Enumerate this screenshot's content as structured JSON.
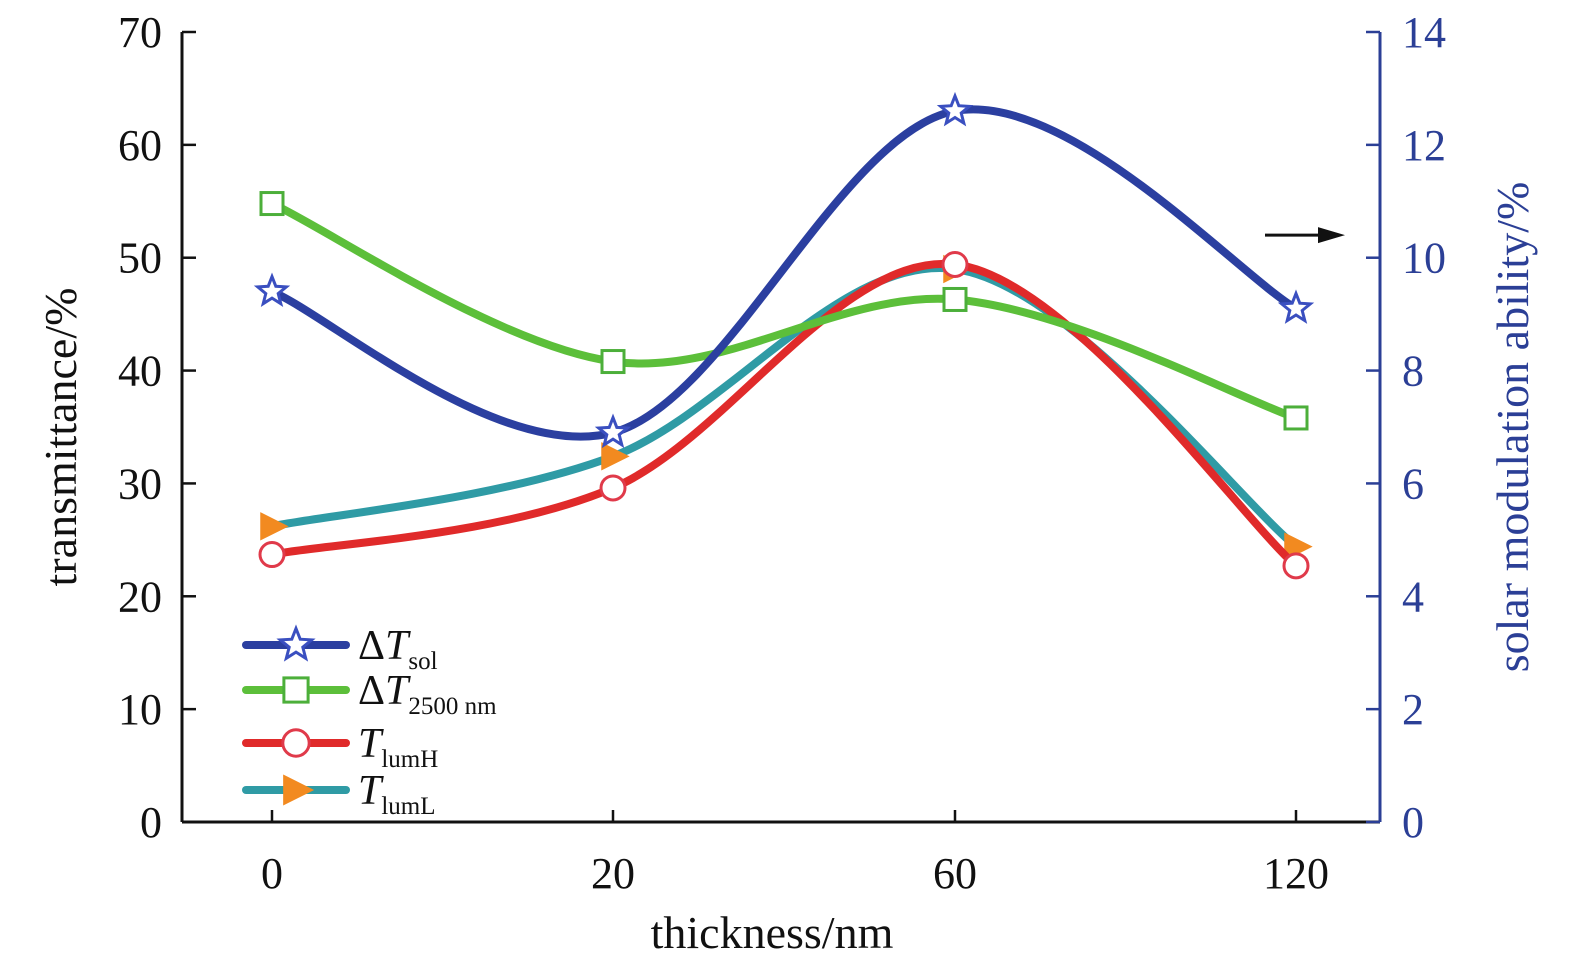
{
  "chart_data": {
    "type": "line",
    "xlabel": "thickness/nm",
    "ylabel_left": "transmittance/%",
    "ylabel_right": "solar modulation ability/%",
    "categories": [
      "0",
      "20",
      "60",
      "120"
    ],
    "ylim_left": [
      0,
      70
    ],
    "yticks_left": [
      "0",
      "10",
      "20",
      "30",
      "40",
      "50",
      "60",
      "70"
    ],
    "ylim_right": [
      0,
      14
    ],
    "yticks_right": [
      "0",
      "2",
      "4",
      "6",
      "8",
      "10",
      "12",
      "14"
    ],
    "grid": false,
    "legend_position": "bottom-left",
    "series": [
      {
        "name": "ΔT",
        "name_sub": "sol",
        "italic_part": "T",
        "prefix": "Δ",
        "axis": "right",
        "marker": "star",
        "color": "#2b3fa0",
        "marker_color": "#3a4fc0",
        "values": [
          9.4,
          6.9,
          12.6,
          9.1
        ]
      },
      {
        "name": "ΔT",
        "name_sub": "2500 nm",
        "italic_part": "T",
        "prefix": "Δ",
        "axis": "left",
        "marker": "square",
        "color": "#5cbf3a",
        "marker_color": "#4caf3a",
        "values": [
          54.8,
          40.8,
          46.3,
          35.8
        ]
      },
      {
        "name": "T",
        "name_sub": "lumH",
        "italic_part": "T",
        "prefix": "",
        "axis": "left",
        "marker": "circle",
        "color": "#e02a2a",
        "marker_color": "#e03a4a",
        "values": [
          23.7,
          29.6,
          49.4,
          22.7
        ]
      },
      {
        "name": "T",
        "name_sub": "lumL",
        "italic_part": "T",
        "prefix": "",
        "axis": "left",
        "marker": "triangle-right",
        "color": "#2f9ba5",
        "marker_color": "#f28a20",
        "values": [
          26.2,
          32.4,
          49.0,
          24.4
        ]
      }
    ],
    "annotation": {
      "type": "arrow",
      "points_to": "right-axis",
      "series": "ΔT sol"
    },
    "colors": {
      "right_axis": "#2b3f96",
      "left_axis": "#111111"
    }
  }
}
